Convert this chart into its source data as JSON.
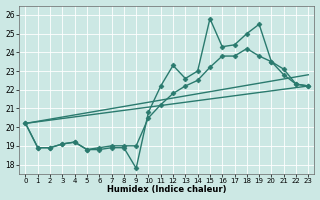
{
  "title": "",
  "xlabel": "Humidex (Indice chaleur)",
  "xlim": [
    -0.5,
    23.5
  ],
  "ylim": [
    17.5,
    26.5
  ],
  "yticks": [
    18,
    19,
    20,
    21,
    22,
    23,
    24,
    25,
    26
  ],
  "xticks": [
    0,
    1,
    2,
    3,
    4,
    5,
    6,
    7,
    8,
    9,
    10,
    11,
    12,
    13,
    14,
    15,
    16,
    17,
    18,
    19,
    20,
    21,
    22,
    23
  ],
  "bg_color": "#cce8e4",
  "line_color": "#2a7a6e",
  "grid_color": "#ffffff",
  "series": [
    {
      "x": [
        0,
        1,
        2,
        3,
        4,
        5,
        6,
        7,
        8,
        9,
        10,
        11,
        12,
        13,
        14,
        15,
        16,
        17,
        18,
        19,
        20,
        21,
        22,
        23
      ],
      "y": [
        20.2,
        18.9,
        18.9,
        19.1,
        19.2,
        18.8,
        18.8,
        18.9,
        18.9,
        17.8,
        20.8,
        22.2,
        23.3,
        22.6,
        23.0,
        25.8,
        24.3,
        24.4,
        25.0,
        25.5,
        23.5,
        23.1,
        22.3,
        22.2
      ],
      "marker": "D",
      "markersize": 2.5,
      "linewidth": 1.0,
      "linestyle": "-",
      "has_marker": true
    },
    {
      "x": [
        0,
        1,
        2,
        3,
        4,
        5,
        6,
        7,
        8,
        9,
        10,
        11,
        12,
        13,
        14,
        15,
        16,
        17,
        18,
        19,
        20,
        21,
        22,
        23
      ],
      "y": [
        20.2,
        18.9,
        18.9,
        19.1,
        19.2,
        18.8,
        18.9,
        19.0,
        19.0,
        19.0,
        20.5,
        21.2,
        21.8,
        22.2,
        22.5,
        23.2,
        23.8,
        23.8,
        24.2,
        23.8,
        23.5,
        22.8,
        22.3,
        22.2
      ],
      "marker": "D",
      "markersize": 2.5,
      "linewidth": 1.0,
      "linestyle": "-",
      "has_marker": true
    },
    {
      "x": [
        0,
        23
      ],
      "y": [
        20.2,
        22.2
      ],
      "marker": null,
      "markersize": 0,
      "linewidth": 1.0,
      "linestyle": "-",
      "has_marker": false
    },
    {
      "x": [
        0,
        23
      ],
      "y": [
        20.2,
        22.8
      ],
      "marker": null,
      "markersize": 0,
      "linewidth": 1.0,
      "linestyle": "-",
      "has_marker": false
    }
  ]
}
